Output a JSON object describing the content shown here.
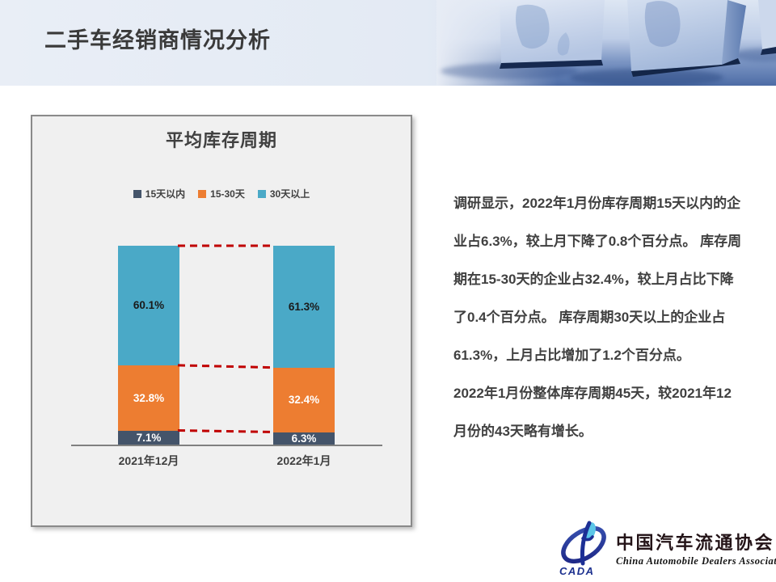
{
  "slide": {
    "title": "二手车经销商情况分析"
  },
  "chart": {
    "title": "平均库存周期"
  },
  "chart_data": {
    "type": "bar",
    "stacked": true,
    "title": "平均库存周期",
    "categories": [
      "2021年12月",
      "2022年1月"
    ],
    "series": [
      {
        "name": "15天以内",
        "color": "#44546A",
        "label_color": "#ffffff",
        "values": [
          7.1,
          6.3
        ]
      },
      {
        "name": "15-30天",
        "color": "#ED7D31",
        "label_color": "#ffffff",
        "values": [
          32.8,
          32.4
        ]
      },
      {
        "name": "30天以上",
        "color": "#4AA9C7",
        "label_color": "#1a1a1a",
        "values": [
          60.1,
          61.3
        ]
      }
    ],
    "value_suffix": "%",
    "ylim": [
      0,
      100
    ],
    "legend_position": "top-center",
    "grid": false,
    "annotations": "red dashed connector lines between matching segment boundaries of the two bars",
    "connector_color": "#C00000",
    "axis_line_color": "#808080"
  },
  "commentary": {
    "paragraph1": "调研显示，2022年1月份库存周期15天以内的企业占6.3%，较上月下降了0.8个百分点。 库存周期在15-30天的企业占32.4%，较上月占比下降了0.4个百分点。 库存周期30天以上的企业占61.3%，上月占比增加了1.2个百分点。",
    "paragraph2": "2022年1月份整体库存周期45天，较2021年12月份的43天略有增长。"
  },
  "logo": {
    "acronym": "CADA",
    "name_cn": "中国汽车流通协会",
    "name_en": "China Automobile Dealers Association"
  },
  "colors": {
    "title_text": "#3a3a3a",
    "panel_background": "#f0f0f0",
    "panel_border": "#8a8a8a",
    "body_text": "#404040",
    "header_blue": "#51709f",
    "logo_blue": "#1b2f8e"
  }
}
